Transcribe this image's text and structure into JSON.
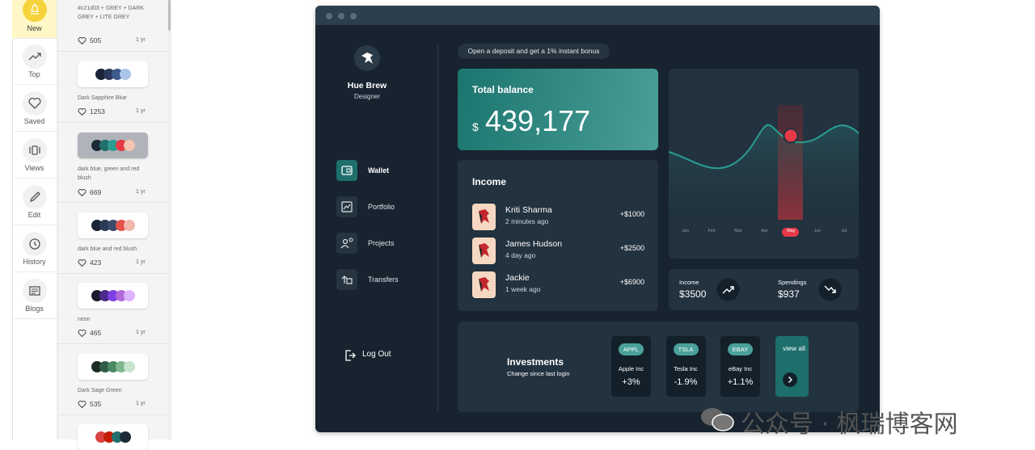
{
  "nav": [
    "New",
    "Top",
    "Saved",
    "Views",
    "Edit",
    "History",
    "Blogs"
  ],
  "palettes": [
    {
      "description": "#c21d03 + GREY + DARK GREY + LITE GREY",
      "likes": "505",
      "age": "1 yr"
    },
    {
      "description": "Dark Sapphire Blue",
      "likes": "1253",
      "age": "1 yr"
    },
    {
      "description": "dark blue, green and red blush",
      "likes": "669",
      "age": "1 yr"
    },
    {
      "description": "dark blue and red blush",
      "likes": "423",
      "age": "1 yr"
    },
    {
      "description": "neon",
      "likes": "465",
      "age": "1 yr"
    },
    {
      "description": "Dark Sage Green",
      "likes": "535",
      "age": "1 yr"
    }
  ],
  "dashboard": {
    "profile": {
      "name": "Hue Brew",
      "role": "Designer"
    },
    "menu": [
      "Wallet",
      "Portfolio",
      "Projects",
      "Transfers"
    ],
    "logout": "Log Out",
    "banner": "Open a deposit and get a 1% instant bonus",
    "balance": {
      "title": "Total balance",
      "currency": "$",
      "amount": "439,177"
    },
    "chart": {
      "months": [
        "Jan",
        "Feb",
        "Mar",
        "Apr",
        "May",
        "Jun",
        "Jul"
      ]
    },
    "income": {
      "title": "Income",
      "entries": [
        {
          "name": "Kriti Sharma",
          "time": "2 minutes ago",
          "amount": "+$1000"
        },
        {
          "name": "James Hudson",
          "time": "4 day ago",
          "amount": "+$2500"
        },
        {
          "name": "Jackie",
          "time": "1 week ago",
          "amount": "+$6900"
        }
      ]
    },
    "summary": [
      {
        "label": "Income",
        "amount": "$3500"
      },
      {
        "label": "Spendings",
        "amount": "$937"
      }
    ],
    "investments": {
      "title": "Investments",
      "subtitle": "Change since last login",
      "stocks": [
        {
          "ticker": "APPL",
          "name": "Apple Inc",
          "change": "+3%"
        },
        {
          "ticker": "TSLA",
          "name": "Tesla Inc",
          "change": "-1.9%"
        },
        {
          "ticker": "EBAY",
          "name": "eBay Inc",
          "change": "+1.1%"
        }
      ],
      "view_all": "view all"
    }
  },
  "watermark": "公众号 · 枫瑞博客网"
}
